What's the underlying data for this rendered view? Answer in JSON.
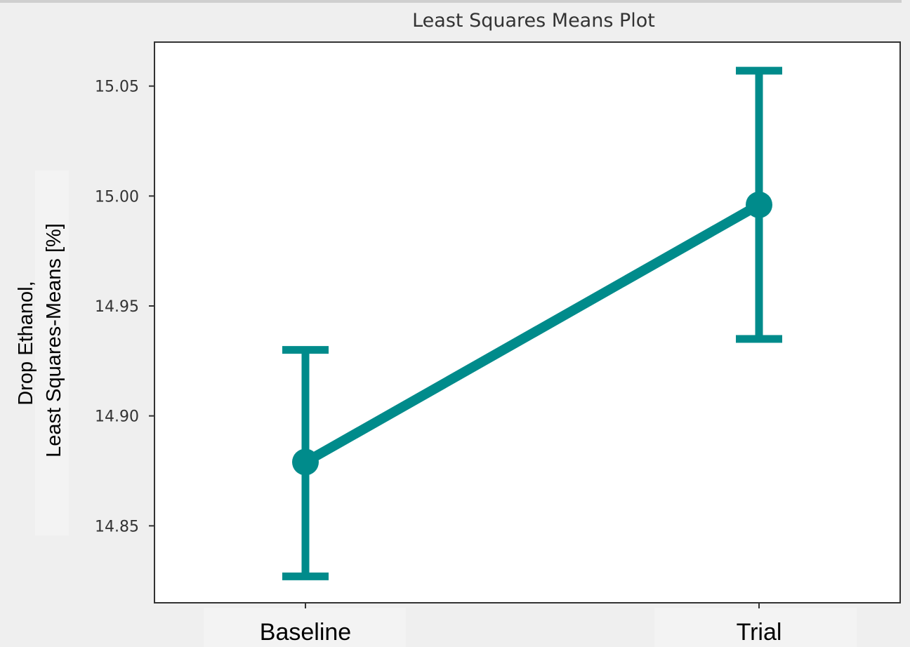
{
  "chart_data": {
    "type": "line",
    "title": "Least Squares Means Plot",
    "ylabel_lines": [
      "Drop Ethanol,",
      "Least Squares-Means [%]"
    ],
    "xlabel": "",
    "categories": [
      "Baseline",
      "Trial"
    ],
    "series": [
      {
        "values": [
          14.879,
          14.996
        ],
        "error_low": [
          14.827,
          14.935
        ],
        "error_high": [
          14.93,
          15.057
        ],
        "color": "#008b8b"
      }
    ],
    "ylim": [
      14.815,
      15.07
    ],
    "yticks": [
      "14.85",
      "14.90",
      "14.95",
      "15.00",
      "15.05"
    ],
    "grid": false,
    "legend": "none"
  }
}
